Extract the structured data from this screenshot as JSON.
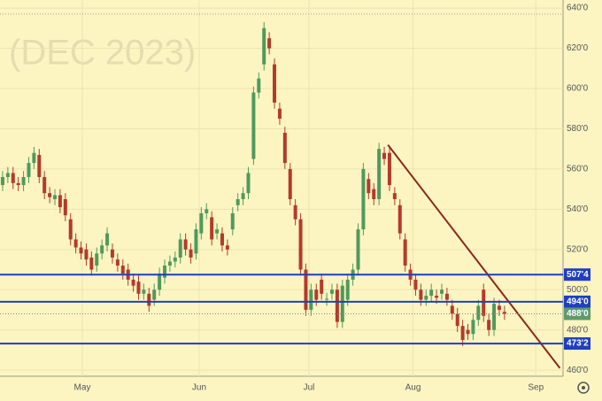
{
  "chart_data": {
    "type": "candlestick",
    "watermark": "(DEC 2023)",
    "open": [
      552,
      556,
      558,
      553,
      552,
      556,
      563,
      567,
      556,
      548,
      545,
      547,
      545,
      535,
      525,
      521,
      520,
      516,
      512,
      518,
      522,
      520,
      515,
      512,
      510,
      505,
      504,
      498,
      498,
      495,
      500,
      506,
      512,
      514,
      516,
      525,
      520,
      518,
      528,
      538,
      536,
      528,
      528,
      522,
      530,
      542,
      545,
      548,
      565,
      598,
      612,
      625,
      612,
      590,
      578,
      560,
      542,
      535,
      510,
      490,
      500,
      505,
      495,
      498,
      500,
      484,
      495,
      505,
      510,
      530,
      555,
      550,
      545,
      568,
      568,
      548,
      542,
      525,
      510,
      505,
      500,
      495,
      497,
      497,
      498,
      498,
      492,
      488,
      482,
      480,
      478,
      485,
      500,
      485,
      480,
      492,
      489
    ],
    "close": [
      556,
      558,
      553,
      552,
      556,
      563,
      568,
      556,
      548,
      546,
      547,
      541,
      537,
      525,
      521,
      518,
      515,
      510,
      518,
      522,
      528,
      516,
      512,
      508,
      505,
      502,
      498,
      500,
      492,
      500,
      508,
      512,
      514,
      516,
      525,
      520,
      516,
      530,
      538,
      540,
      525,
      530,
      522,
      520,
      538,
      545,
      548,
      558,
      598,
      605,
      630,
      620,
      593,
      585,
      563,
      545,
      535,
      510,
      490,
      500,
      495,
      498,
      495.5,
      500,
      484,
      502,
      505,
      510,
      530,
      560,
      548,
      545,
      570,
      565,
      552,
      545,
      528,
      512,
      505,
      500,
      495,
      497,
      500,
      496,
      500,
      495,
      488,
      482,
      475,
      478,
      485,
      492,
      487,
      480,
      493,
      490,
      488
    ],
    "high": [
      559,
      561,
      561,
      556,
      559,
      566,
      571,
      570,
      559,
      551,
      550,
      550,
      548,
      538,
      528,
      524,
      523,
      519,
      521,
      525,
      531,
      523,
      518,
      515,
      513,
      508,
      507,
      503,
      501,
      503,
      511,
      515,
      517,
      519,
      528,
      528,
      523,
      533,
      541,
      543,
      539,
      533,
      531,
      525,
      541,
      548,
      551,
      561,
      601,
      608,
      633,
      628,
      615,
      593,
      581,
      563,
      545,
      538,
      513,
      503,
      503,
      508,
      498.5,
      503,
      503,
      505,
      508,
      513,
      533,
      563,
      558,
      553,
      573,
      571,
      571,
      551,
      545,
      528,
      513,
      508,
      503,
      500,
      503,
      500,
      503,
      501,
      495,
      491,
      485,
      483,
      488,
      495,
      503,
      488,
      496,
      495,
      492
    ],
    "low": [
      549,
      553,
      550,
      549,
      549,
      553,
      560,
      553,
      545,
      543,
      542,
      538,
      534,
      522,
      518,
      515,
      512,
      507,
      509,
      515,
      519,
      513,
      509,
      505,
      502,
      499,
      495,
      495,
      489,
      492,
      497,
      503,
      509,
      511,
      513,
      517,
      513,
      515,
      525,
      535,
      522,
      525,
      519,
      517,
      527,
      539,
      542,
      545,
      562,
      595,
      609,
      617,
      590,
      582,
      560,
      542,
      532,
      507,
      487,
      487,
      492,
      495,
      492,
      495,
      481,
      481,
      492,
      502,
      507,
      527,
      545,
      542,
      542,
      562,
      549,
      542,
      525,
      509,
      502,
      497,
      492,
      492,
      494,
      493,
      495,
      492,
      485,
      479,
      472,
      475,
      475,
      482,
      484,
      477,
      477,
      487,
      485
    ],
    "up_color": "#4f9a5c",
    "down_color": "#b33a2c",
    "xlim": [
      -0.5,
      107.2
    ],
    "xticks": [
      {
        "value": 15.25,
        "label": "May"
      },
      {
        "value": 37.6,
        "label": "Jun"
      },
      {
        "value": 58.6,
        "label": "Jul"
      },
      {
        "value": 78.5,
        "label": "Aug"
      },
      {
        "value": 102,
        "label": "Sep"
      }
    ],
    "ylim": [
      457,
      644
    ],
    "yticks": [
      {
        "value": 460,
        "label": "460'0"
      },
      {
        "value": 480,
        "label": "480'0"
      },
      {
        "value": 500,
        "label": "500'0"
      },
      {
        "value": 520,
        "label": "520'0"
      },
      {
        "value": 540,
        "label": "540'0"
      },
      {
        "value": 560,
        "label": "560'0"
      },
      {
        "value": 580,
        "label": "580'0"
      },
      {
        "value": 600,
        "label": "600'0"
      },
      {
        "value": 620,
        "label": "620'0"
      },
      {
        "value": 640,
        "label": "640'0"
      }
    ],
    "grid": true,
    "levels": [
      {
        "value": 507.5,
        "label": "507'4",
        "color": "#1f3fbf"
      },
      {
        "value": 494,
        "label": "494'0",
        "color": "#1f3fbf"
      },
      {
        "value": 473.25,
        "label": "473'2",
        "color": "#1f3fbf"
      }
    ],
    "last_price": {
      "value": 488,
      "label": "488'0",
      "color": "#5e9a6c"
    },
    "reference_line": 637,
    "trendline": {
      "x": [
        73.7,
        106.6
      ],
      "y": [
        572,
        461
      ],
      "color": "#8b2a1c"
    }
  }
}
